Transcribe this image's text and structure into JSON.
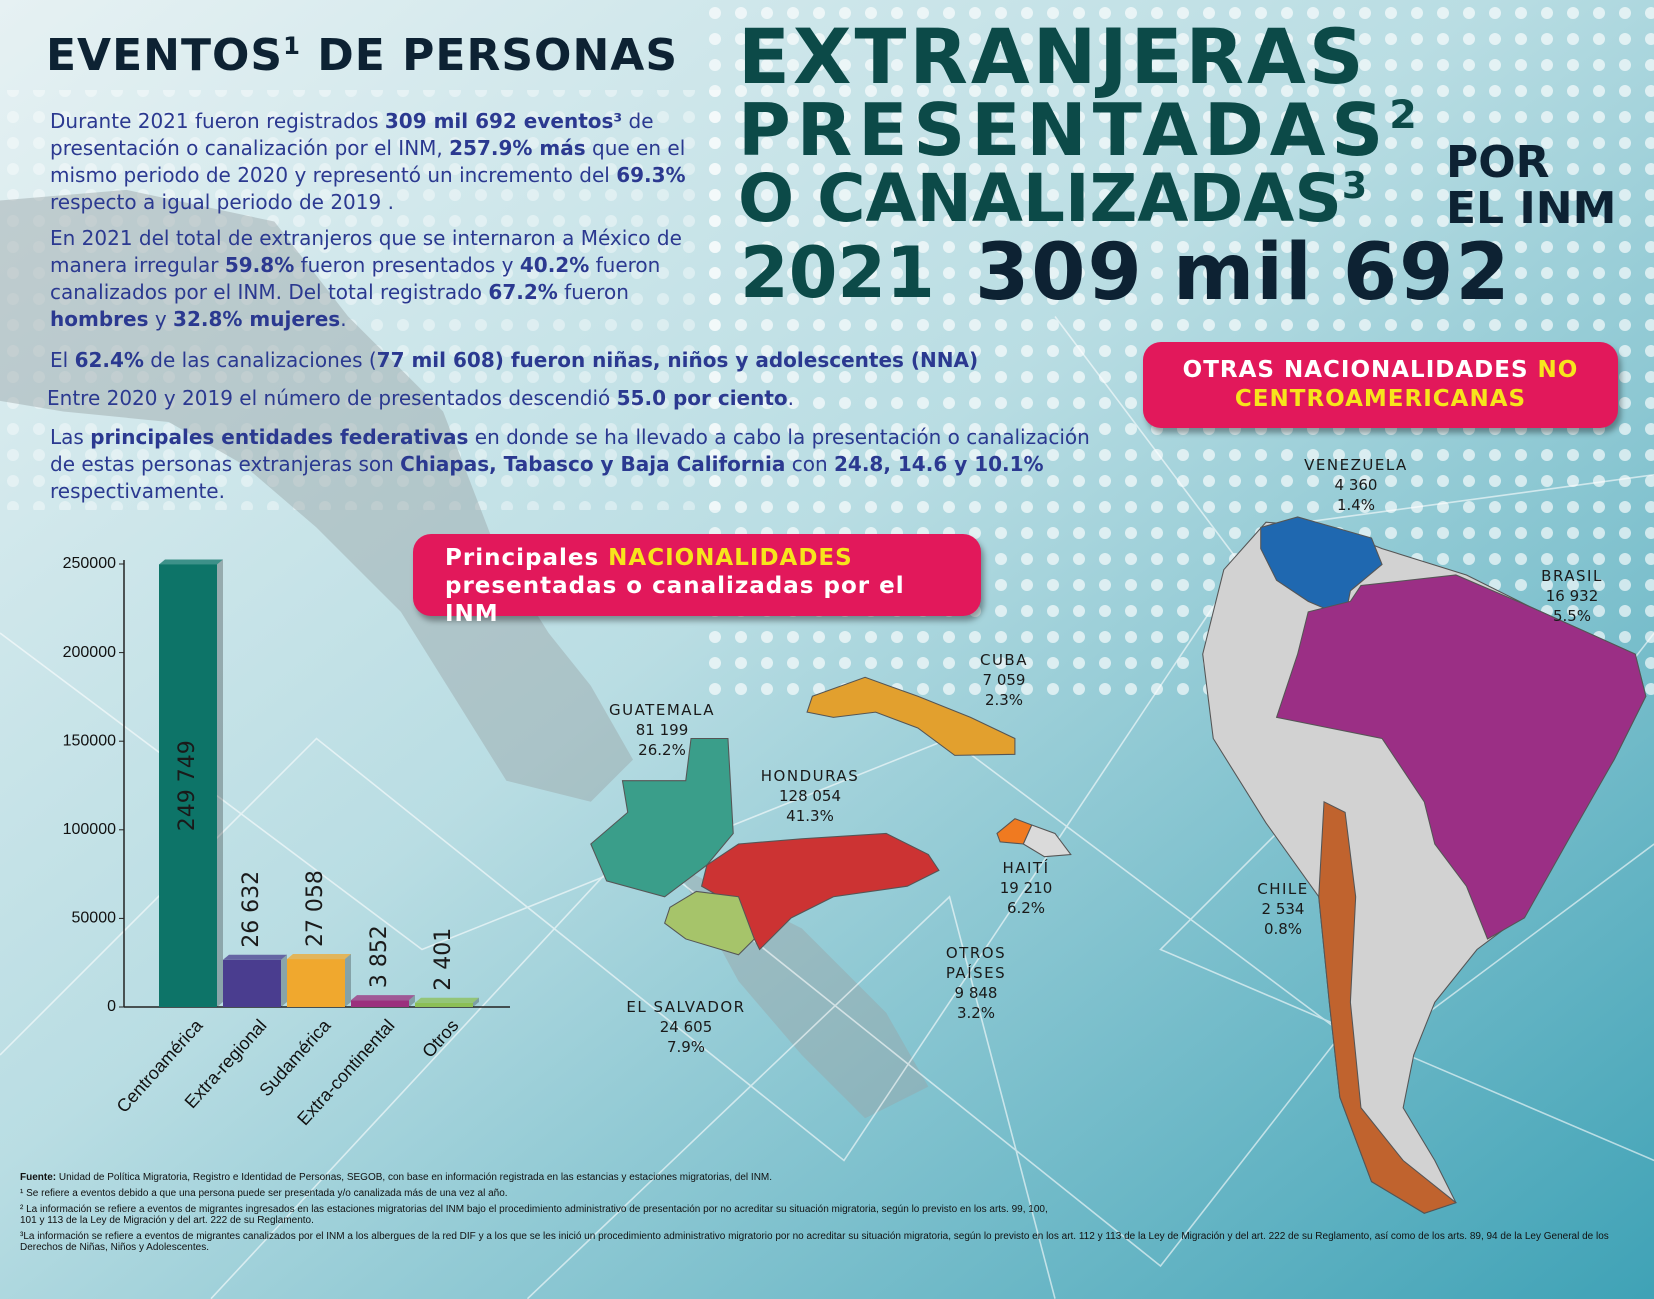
{
  "header": {
    "line1": "EVENTOS",
    "sup1": "1",
    "line1b": "DE PERSONAS",
    "line2": "EXTRANJERAS",
    "line3": "PRESENTADAS",
    "sup2": "2",
    "line4": "O CANALIZADAS",
    "sup3": "3",
    "por": "POR",
    "el_inm": "EL INM",
    "year": "2021",
    "total": "309 mil 692"
  },
  "paragraphs": [
    [
      "Durante 2021 fueron registrados ",
      "309 mil 692 eventos³",
      " de presentación o canalización por el INM, ",
      "257.9% más",
      " que en el mismo periodo de 2020 y representó un incremento del ",
      "69.3%",
      " respecto a igual periodo de 2019 ."
    ],
    [
      "En 2021 del total de extranjeros que se internaron a México de manera irregular ",
      "59.8%",
      " fueron presentados y ",
      "40.2%",
      " fueron canalizados por el INM. Del total registrado ",
      "67.2%",
      " fueron ",
      "hombres",
      " y ",
      "32.8% mujeres",
      "."
    ],
    [
      "El ",
      "62.4%",
      " de las canalizaciones (",
      "77 mil 608) fueron niñas, niños y adolescentes (NNA)"
    ],
    [
      "Entre 2020 y 2019 el número de presentados descendió ",
      "55.0 por ciento",
      "."
    ],
    [
      "Las ",
      "principales entidades federativas",
      " en donde se ha llevado a cabo la presentación o canalización de estas personas extranjeras son ",
      "Chiapas, Tabasco y Baja California",
      " con ",
      "24.8, 14.6 y 10.1%",
      " respectivamente."
    ]
  ],
  "box_main": {
    "a": "Principales ",
    "b": "NACIONALIDADES",
    "c": "presentadas o canalizadas por el INM"
  },
  "box_other": {
    "a": "OTRAS NACIONALIDADES ",
    "b": "NO CENTROAMERICANAS"
  },
  "map": {
    "countries": [
      {
        "name": "VENEZUELA",
        "value": "4 360",
        "percent": "1.4%"
      },
      {
        "name": "BRASIL",
        "value": "16 932",
        "percent": "5.5%"
      },
      {
        "name": "CUBA",
        "value": "7 059",
        "percent": "2.3%"
      },
      {
        "name": "GUATEMALA",
        "value": "81 199",
        "percent": "26.2%"
      },
      {
        "name": "HONDURAS",
        "value": "128 054",
        "percent": "41.3%"
      },
      {
        "name": "HAITÍ",
        "value": "19 210",
        "percent": "6.2%"
      },
      {
        "name": "CHILE",
        "value": "2 534",
        "percent": "0.8%"
      },
      {
        "name": "OTROS PAÍSES",
        "value": "9 848",
        "percent": "3.2%"
      },
      {
        "name": "EL SALVADOR",
        "value": "24 605",
        "percent": "7.9%"
      }
    ]
  },
  "chart_data": {
    "type": "bar",
    "categories": [
      "Centroamérica",
      "Extra-regional",
      "Sudamérica",
      "Extra-continental",
      "Otros"
    ],
    "values": [
      249749,
      26632,
      27058,
      3852,
      2401
    ],
    "value_labels": [
      "249 749",
      "26 632",
      "27 058",
      "3 852",
      "2 401"
    ],
    "colors": [
      "#0d7468",
      "#4a3d8f",
      "#f0a82e",
      "#9b2f7d",
      "#8cbf55"
    ],
    "ylim": [
      0,
      250000
    ],
    "yticks": [
      0,
      50000,
      100000,
      150000,
      200000,
      250000
    ]
  },
  "footnotes": {
    "source_label": "Fuente:",
    "source": " Unidad de Política Migratoria, Registro e Identidad de Personas, SEGOB, con base en información registrada en las estancias y estaciones migratorias, del INM.",
    "notes": [
      "¹ Se refiere a eventos debido a que una persona puede ser presentada y/o canalizada más de una vez al año.",
      "² La información se refiere a eventos de migrantes ingresados en las estaciones migratorias del INM bajo el procedimiento administrativo de presentación por no acreditar su situación migratoria, según lo previsto en los arts. 99, 100, 101 y 113 de la Ley de Migración y del art. 222 de su Reglamento.",
      "³La información se refiere a eventos de migrantes canalizados por el INM a los albergues de la red DIF y a los que se les inició un procedimiento administrativo migratorio por no acreditar su situación migratoria, según lo previsto en los art. 112 y 113 de la Ley de Migración y del art. 222 de su Reglamento, así como de los arts. 89, 94 de la Ley General de los Derechos de Niñas, Niños y Adolescentes."
    ]
  }
}
